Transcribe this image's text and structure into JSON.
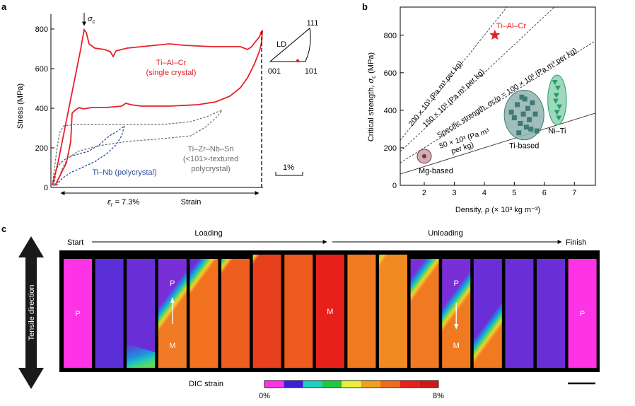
{
  "panel_labels": {
    "a": "a",
    "b": "b",
    "c": "c"
  },
  "chart_data": [
    {
      "type": "line",
      "panel": "a",
      "title": "",
      "xlabel": "Strain",
      "ylabel": "Stress (MPa)",
      "ylim": [
        0,
        850
      ],
      "yticks": [
        "0",
        "200",
        "400",
        "600",
        "800"
      ],
      "sigma_label": "σ",
      "sigma_sub": "c",
      "strain_label": "ε",
      "strain_sub": "r",
      "strain_value": " = 7.3%",
      "scale_bar_label": "1%",
      "series": [
        {
          "name": "Ti–Al–Cr",
          "note": "(single crystal)",
          "color": "#e8202a",
          "style": "solid",
          "peak_stress": 800,
          "plateau_stress": 720,
          "return_plateau": 400
        },
        {
          "name": "Ti–Nb (polycrystal)",
          "color": "#2d4e9e",
          "style": "dashed",
          "peak_stress": 300
        },
        {
          "name": "Ti–Zr–Nb–Sn",
          "note1": "(<101>-textured",
          "note2": "polycrystal)",
          "color": "#6b6b6b",
          "style": "dashed",
          "peak_stress": 390,
          "plateau_stress": 320
        }
      ],
      "inset": {
        "corner_top": "111",
        "corner_left": "001",
        "corner_right": "101",
        "label": "LD",
        "marker_color": "#e8202a"
      }
    },
    {
      "type": "scatter",
      "panel": "b",
      "xlabel": "Density, ρ (× 10³ kg m⁻³)",
      "ylabel": "Critical strength, σ_c (MPa)",
      "xlim": [
        1.2,
        7.7
      ],
      "ylim": [
        0,
        950
      ],
      "xticks": [
        2,
        3,
        4,
        5,
        6,
        7
      ],
      "yticks": [
        0,
        200,
        400,
        600,
        800
      ],
      "specific_strength_lines": [
        {
          "slope": 200,
          "label": "200 × 10³ (Pa m³ per kg)"
        },
        {
          "slope": 150,
          "label": "150 × 10³ (Pa m³ per kg)"
        },
        {
          "slope": 100,
          "label": "Specific strength, σc/ρ = 100 × 10³ (Pa m³ per kg)"
        },
        {
          "slope": 50,
          "label1": "50 × 10³ (Pa m³",
          "label2": "per kg)"
        }
      ],
      "groups": [
        {
          "name": "Mg-based",
          "color": "#7a3340",
          "fill": "#c9a0a8",
          "points": [
            [
              2.0,
              155
            ]
          ]
        },
        {
          "name": "Ti-based",
          "color": "#3f7a75",
          "fill": "#8fb3af",
          "points": [
            [
              4.9,
              390
            ],
            [
              5.0,
              360
            ],
            [
              5.1,
              430
            ],
            [
              5.2,
              330
            ],
            [
              5.3,
              380
            ],
            [
              5.35,
              460
            ],
            [
              5.4,
              310
            ],
            [
              5.45,
              410
            ],
            [
              5.5,
              350
            ],
            [
              5.55,
              300
            ],
            [
              5.6,
              440
            ],
            [
              5.7,
              380
            ],
            [
              5.75,
              290
            ],
            [
              5.15,
              280
            ],
            [
              5.25,
              470
            ]
          ]
        },
        {
          "name": "Ni–Ti",
          "color": "#1f9e6a",
          "fill": "#8fd1b0",
          "points": [
            [
              6.35,
              550
            ],
            [
              6.45,
              520
            ],
            [
              6.4,
              480
            ],
            [
              6.5,
              420
            ],
            [
              6.42,
              390
            ],
            [
              6.38,
              450
            ],
            [
              6.48,
              360
            ]
          ]
        },
        {
          "name": "Ti–Al–Cr",
          "color": "#e8202a",
          "marker": "star",
          "points": [
            [
              4.35,
              800
            ]
          ]
        }
      ]
    }
  ],
  "panel_c": {
    "start": "Start",
    "loading": "Loading",
    "unloading": "Unloading",
    "finish": "Finish",
    "tensile_direction": "Tensile direction",
    "colorbar_title": "DIC strain",
    "colorbar_min": "0%",
    "colorbar_max": "8%",
    "colorbar_colors": [
      "#ff33e6",
      "#3d1fd8",
      "#1fd0c0",
      "#22c83c",
      "#e8f03a",
      "#f0a020",
      "#f06a20",
      "#e8201c",
      "#d01818"
    ],
    "phase_p": "P",
    "phase_m": "M",
    "strips": [
      {
        "name": "strip-1",
        "kind": "solid",
        "top": "#ff33e6",
        "label": "P"
      },
      {
        "name": "strip-2",
        "kind": "solid",
        "top": "#5a2fd8"
      },
      {
        "name": "strip-3",
        "kind": "front",
        "top": "#6a2ed6",
        "bottom": "#6a2ed6",
        "front": 0.88,
        "partial": true
      },
      {
        "name": "strip-4",
        "kind": "front",
        "top": "#7a2ed8",
        "bottom": "#f07a26",
        "front": 0.52,
        "label_top": "P",
        "label_bottom": "M",
        "arrow": "up"
      },
      {
        "name": "strip-5",
        "kind": "front",
        "top": "#6a2ed6",
        "bottom": "#f2721f",
        "front": 0.22
      },
      {
        "name": "strip-6",
        "kind": "front",
        "top": "#6a2ed6",
        "bottom": "#ee5e1e",
        "front": 0.05
      },
      {
        "name": "strip-7",
        "kind": "front",
        "top": "#22b6d6",
        "bottom": "#e8401c",
        "front": -0.06
      },
      {
        "name": "strip-8",
        "kind": "solid",
        "top": "#ef5a1e"
      },
      {
        "name": "strip-9",
        "kind": "solid",
        "top": "#e8201c",
        "label": "M"
      },
      {
        "name": "strip-10",
        "kind": "solid",
        "top": "#f07a22"
      },
      {
        "name": "strip-11",
        "kind": "front",
        "top": "#26c2d2",
        "bottom": "#f28a22",
        "front": 0.02
      },
      {
        "name": "strip-12",
        "kind": "front",
        "top": "#7a2ed8",
        "bottom": "#f07a24",
        "front": 0.28
      },
      {
        "name": "strip-13",
        "kind": "front",
        "top": "#7a2ed8",
        "bottom": "#f07a22",
        "front": 0.52,
        "label_top": "P",
        "label_bottom": "M",
        "arrow": "down"
      },
      {
        "name": "strip-14",
        "kind": "front",
        "top": "#6a2ed6",
        "bottom": "#f07a22",
        "front": 0.78
      },
      {
        "name": "strip-15",
        "kind": "solid",
        "top": "#6a2ed6"
      },
      {
        "name": "strip-16",
        "kind": "solid",
        "top": "#6a2ed6"
      },
      {
        "name": "strip-17",
        "kind": "solid",
        "top": "#ff33e6",
        "label": "P"
      }
    ]
  }
}
